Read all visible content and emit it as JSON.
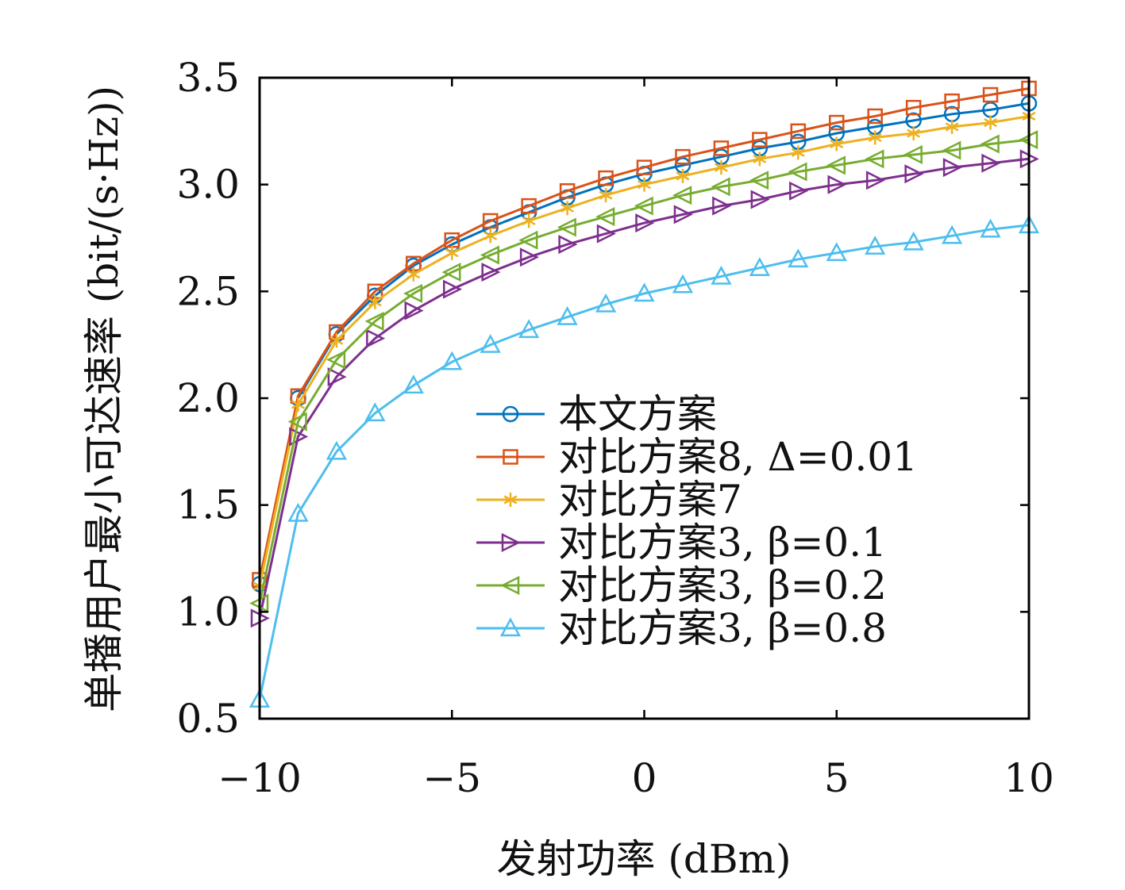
{
  "chart_data": {
    "type": "line",
    "xlabel": "发射功率 (dBm)",
    "ylabel": "单播用户最小可达速率 (bit/(s·Hz))",
    "xlim": [
      -10,
      10
    ],
    "ylim": [
      0.5,
      3.5
    ],
    "xticks": [
      -10,
      -5,
      0,
      5,
      10
    ],
    "xtick_labels": [
      "−10",
      "−5",
      "0",
      "5",
      "10"
    ],
    "yticks": [
      0.5,
      1.0,
      1.5,
      2.0,
      2.5,
      3.0,
      3.5
    ],
    "ytick_labels": [
      "0.5",
      "1.0",
      "1.5",
      "2.0",
      "2.5",
      "3.0",
      "3.5"
    ],
    "grid": false,
    "legend_position": "bottom-right",
    "x": [
      -10,
      -9,
      -8,
      -7,
      -6,
      -5,
      -4,
      -3,
      -2,
      -1,
      0,
      1,
      2,
      3,
      4,
      5,
      6,
      7,
      8,
      9,
      10
    ],
    "series": [
      {
        "name": "本文方案",
        "color": "#0072BD",
        "marker": "circle",
        "values": [
          1.13,
          2.0,
          2.3,
          2.48,
          2.62,
          2.72,
          2.8,
          2.87,
          2.94,
          3.0,
          3.05,
          3.09,
          3.13,
          3.17,
          3.2,
          3.24,
          3.27,
          3.3,
          3.33,
          3.35,
          3.38
        ]
      },
      {
        "name": "对比方案8, Δ=0.01",
        "color": "#D95319",
        "marker": "square",
        "values": [
          1.15,
          2.01,
          2.31,
          2.5,
          2.63,
          2.74,
          2.83,
          2.9,
          2.97,
          3.03,
          3.08,
          3.13,
          3.17,
          3.21,
          3.25,
          3.29,
          3.32,
          3.36,
          3.39,
          3.42,
          3.45
        ]
      },
      {
        "name": "对比方案7",
        "color": "#EDB120",
        "marker": "asterisk",
        "values": [
          1.12,
          1.97,
          2.27,
          2.45,
          2.58,
          2.68,
          2.76,
          2.83,
          2.89,
          2.95,
          3.0,
          3.04,
          3.08,
          3.12,
          3.15,
          3.19,
          3.22,
          3.24,
          3.27,
          3.29,
          3.32
        ]
      },
      {
        "name": "对比方案3, β=0.1",
        "color": "#7E2F8E",
        "marker": "triangle-right",
        "values": [
          0.97,
          1.82,
          2.1,
          2.28,
          2.41,
          2.51,
          2.59,
          2.66,
          2.72,
          2.77,
          2.82,
          2.86,
          2.9,
          2.93,
          2.97,
          3.0,
          3.02,
          3.05,
          3.08,
          3.1,
          3.12
        ]
      },
      {
        "name": "对比方案3, β=0.2",
        "color": "#77AC30",
        "marker": "triangle-left",
        "values": [
          1.04,
          1.89,
          2.18,
          2.36,
          2.49,
          2.59,
          2.67,
          2.74,
          2.8,
          2.85,
          2.9,
          2.95,
          2.99,
          3.02,
          3.06,
          3.09,
          3.12,
          3.14,
          3.16,
          3.19,
          3.21
        ]
      },
      {
        "name": "对比方案3, β=0.8",
        "color": "#4DBEEE",
        "marker": "triangle-up",
        "values": [
          0.59,
          1.46,
          1.75,
          1.93,
          2.06,
          2.17,
          2.25,
          2.32,
          2.38,
          2.44,
          2.49,
          2.53,
          2.57,
          2.61,
          2.65,
          2.68,
          2.71,
          2.73,
          2.76,
          2.79,
          2.81
        ]
      }
    ]
  }
}
